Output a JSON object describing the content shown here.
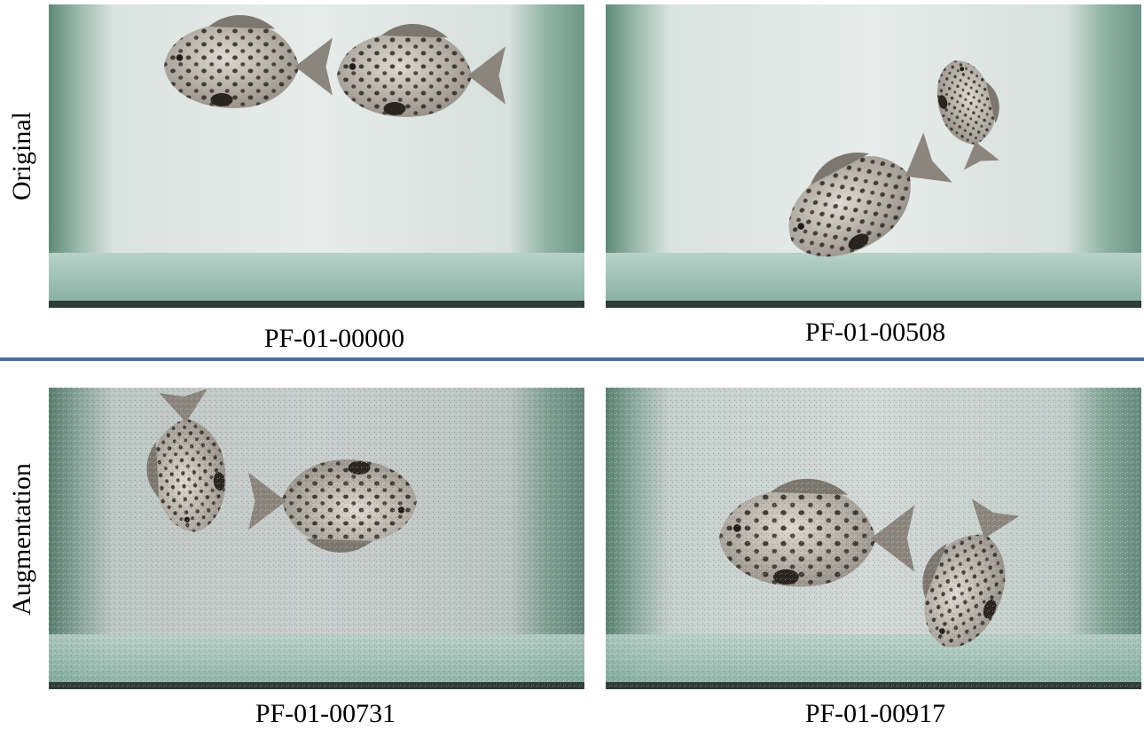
{
  "rows": [
    {
      "label": "Original"
    },
    {
      "label": "Augmentation"
    }
  ],
  "panels": [
    {
      "caption": "PF-01-00000"
    },
    {
      "caption": "PF-01-00508"
    },
    {
      "caption": "PF-01-00731"
    },
    {
      "caption": "PF-01-00917"
    }
  ],
  "colors": {
    "divider": "#4a6fa5"
  }
}
